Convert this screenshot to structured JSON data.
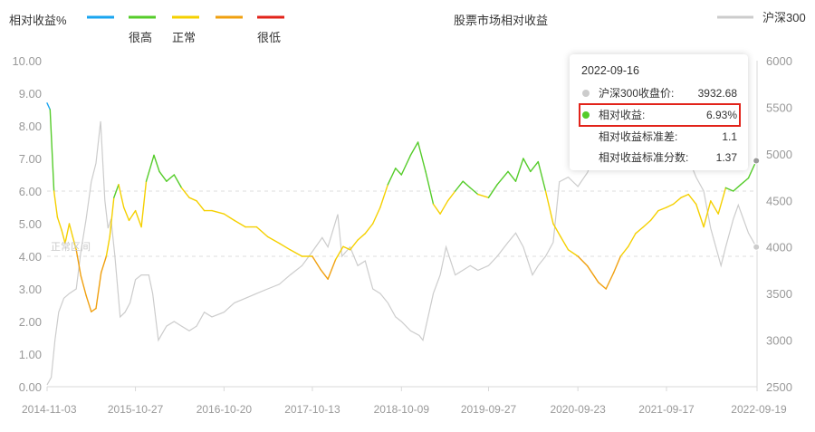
{
  "chart_data": {
    "type": "line",
    "title": "股票市场相对收益",
    "y_left_label": "相对收益%",
    "y_left_ticks": [
      "0.00",
      "1.00",
      "2.00",
      "3.00",
      "4.00",
      "5.00",
      "6.00",
      "7.00",
      "8.00",
      "9.00",
      "10.00"
    ],
    "y_left_range": [
      0,
      10
    ],
    "y_right_ticks": [
      "2500",
      "3000",
      "3500",
      "4000",
      "4500",
      "5000",
      "5500",
      "6000"
    ],
    "y_right_range": [
      2500,
      6000
    ],
    "x_ticks": [
      "2014-11-03",
      "2015-10-27",
      "2016-10-20",
      "2017-10-13",
      "2018-10-09",
      "2019-09-27",
      "2020-09-23",
      "2021-09-17",
      "2022-09-19"
    ],
    "band_label": "正常区间",
    "band": [
      4.0,
      6.0
    ],
    "legend_left": [
      {
        "label": "",
        "color": "#1aa5f0"
      },
      {
        "label": "很高",
        "color": "#55cc2a"
      },
      {
        "label": "正常",
        "color": "#f5d000"
      },
      {
        "label": "",
        "color": "#f0a010"
      },
      {
        "label": "很低",
        "color": "#e2231a"
      }
    ],
    "legend_right": {
      "label": "沪深300",
      "color": "#cccccc"
    },
    "grid": false,
    "series": [
      {
        "name": "相对收益",
        "axis": "left",
        "x": [
          "2014-11-03",
          "2014-11-15",
          "2014-12-01",
          "2014-12-15",
          "2015-01-01",
          "2015-01-15",
          "2015-02-01",
          "2015-02-15",
          "2015-03-01",
          "2015-03-20",
          "2015-04-10",
          "2015-05-01",
          "2015-05-20",
          "2015-06-10",
          "2015-07-01",
          "2015-07-15",
          "2015-08-01",
          "2015-08-20",
          "2015-09-10",
          "2015-10-01",
          "2015-10-27",
          "2015-11-20",
          "2015-12-10",
          "2016-01-10",
          "2016-02-01",
          "2016-03-01",
          "2016-04-01",
          "2016-05-01",
          "2016-06-01",
          "2016-07-01",
          "2016-08-01",
          "2016-09-01",
          "2016-10-20",
          "2016-12-01",
          "2017-01-15",
          "2017-03-01",
          "2017-04-15",
          "2017-06-01",
          "2017-07-15",
          "2017-09-01",
          "2017-10-13",
          "2017-11-15",
          "2017-12-15",
          "2018-01-15",
          "2018-02-15",
          "2018-03-15",
          "2018-04-15",
          "2018-05-15",
          "2018-06-15",
          "2018-07-15",
          "2018-08-15",
          "2018-09-15",
          "2018-10-09",
          "2018-11-15",
          "2018-12-15",
          "2019-01-15",
          "2019-02-15",
          "2019-03-15",
          "2019-04-15",
          "2019-05-15",
          "2019-06-15",
          "2019-07-15",
          "2019-08-15",
          "2019-09-27",
          "2019-11-01",
          "2019-12-15",
          "2020-01-15",
          "2020-02-15",
          "2020-03-15",
          "2020-04-15",
          "2020-05-15",
          "2020-06-15",
          "2020-07-15",
          "2020-08-15",
          "2020-09-23",
          "2020-11-01",
          "2020-12-15",
          "2021-01-15",
          "2021-02-15",
          "2021-03-15",
          "2021-04-15",
          "2021-05-15",
          "2021-06-15",
          "2021-07-15",
          "2021-08-15",
          "2021-09-17",
          "2021-10-15",
          "2021-11-15",
          "2021-12-15",
          "2022-01-15",
          "2022-02-15",
          "2022-03-15",
          "2022-04-15",
          "2022-05-15",
          "2022-06-15",
          "2022-07-15",
          "2022-08-15",
          "2022-09-16"
        ],
        "values": [
          8.7,
          8.5,
          6.0,
          5.2,
          4.8,
          4.4,
          5.0,
          4.6,
          4.2,
          3.4,
          2.8,
          2.3,
          2.4,
          3.5,
          4.0,
          4.6,
          5.8,
          6.2,
          5.5,
          5.1,
          5.4,
          4.9,
          6.3,
          7.1,
          6.6,
          6.3,
          6.5,
          6.1,
          5.8,
          5.7,
          5.4,
          5.4,
          5.3,
          5.1,
          4.9,
          4.9,
          4.6,
          4.4,
          4.2,
          4.0,
          4.0,
          3.6,
          3.3,
          3.9,
          4.3,
          4.2,
          4.5,
          4.7,
          5.0,
          5.5,
          6.2,
          6.7,
          6.5,
          7.1,
          7.5,
          6.6,
          5.6,
          5.3,
          5.7,
          6.0,
          6.3,
          6.1,
          5.9,
          5.8,
          6.2,
          6.6,
          6.3,
          7.0,
          6.6,
          6.9,
          6.0,
          5.0,
          4.6,
          4.2,
          4.0,
          3.7,
          3.2,
          3.0,
          3.5,
          4.0,
          4.3,
          4.7,
          4.9,
          5.1,
          5.4,
          5.5,
          5.6,
          5.8,
          5.9,
          5.6,
          4.9,
          5.7,
          5.3,
          6.1,
          6.0,
          6.2,
          6.4,
          6.93
        ]
      },
      {
        "name": "沪深300",
        "axis": "right",
        "x": [
          "2014-11-03",
          "2014-11-20",
          "2014-12-05",
          "2014-12-20",
          "2015-01-10",
          "2015-02-01",
          "2015-03-01",
          "2015-03-20",
          "2015-04-10",
          "2015-05-01",
          "2015-05-20",
          "2015-06-08",
          "2015-06-25",
          "2015-07-08",
          "2015-07-20",
          "2015-08-05",
          "2015-08-26",
          "2015-09-15",
          "2015-10-05",
          "2015-10-27",
          "2015-11-20",
          "2015-12-20",
          "2016-01-05",
          "2016-01-28",
          "2016-03-01",
          "2016-04-01",
          "2016-05-01",
          "2016-06-01",
          "2016-07-01",
          "2016-08-01",
          "2016-09-01",
          "2016-10-20",
          "2016-12-01",
          "2017-01-15",
          "2017-03-01",
          "2017-04-15",
          "2017-06-01",
          "2017-07-15",
          "2017-09-01",
          "2017-10-13",
          "2017-11-22",
          "2017-12-15",
          "2018-01-24",
          "2018-02-10",
          "2018-03-15",
          "2018-04-15",
          "2018-05-15",
          "2018-06-15",
          "2018-07-15",
          "2018-08-15",
          "2018-09-15",
          "2018-10-09",
          "2018-11-15",
          "2018-12-20",
          "2019-01-04",
          "2019-02-15",
          "2019-03-15",
          "2019-04-08",
          "2019-05-15",
          "2019-06-15",
          "2019-07-15",
          "2019-08-15",
          "2019-09-27",
          "2019-11-01",
          "2019-12-15",
          "2020-01-15",
          "2020-02-15",
          "2020-03-23",
          "2020-04-15",
          "2020-05-15",
          "2020-06-15",
          "2020-07-10",
          "2020-08-15",
          "2020-09-23",
          "2020-11-01",
          "2020-12-15",
          "2021-01-15",
          "2021-02-18",
          "2021-03-15",
          "2021-04-15",
          "2021-05-15",
          "2021-06-15",
          "2021-07-15",
          "2021-08-15",
          "2021-09-17",
          "2021-10-15",
          "2021-11-15",
          "2021-12-15",
          "2022-01-15",
          "2022-02-15",
          "2022-03-15",
          "2022-04-26",
          "2022-05-15",
          "2022-06-15",
          "2022-07-05",
          "2022-08-15",
          "2022-09-16"
        ],
        "values": [
          2520,
          2600,
          3000,
          3300,
          3450,
          3500,
          3550,
          3950,
          4300,
          4700,
          4900,
          5350,
          4500,
          4200,
          4300,
          3900,
          3250,
          3300,
          3400,
          3650,
          3700,
          3700,
          3500,
          3000,
          3150,
          3200,
          3150,
          3100,
          3150,
          3300,
          3250,
          3300,
          3400,
          3450,
          3500,
          3550,
          3600,
          3700,
          3800,
          3950,
          4100,
          4000,
          4350,
          3900,
          4000,
          3800,
          3850,
          3550,
          3500,
          3400,
          3250,
          3200,
          3100,
          3050,
          3000,
          3500,
          3700,
          4000,
          3700,
          3750,
          3800,
          3750,
          3800,
          3900,
          4050,
          4150,
          4000,
          3700,
          3800,
          3900,
          4050,
          4700,
          4750,
          4650,
          4800,
          5100,
          5450,
          5750,
          5200,
          5100,
          5200,
          5250,
          4900,
          4850,
          4900,
          4900,
          4900,
          4950,
          4750,
          4600,
          4200,
          3800,
          4000,
          4300,
          4450,
          4150,
          4000
        ]
      }
    ],
    "tooltip": {
      "date": "2022-09-16",
      "rows": [
        {
          "label": "沪深300收盘价:",
          "value": "3932.68",
          "dot": "#cccccc"
        },
        {
          "label": "相对收益:",
          "value": "6.93%",
          "dot": "#55cc2a"
        },
        {
          "label": "相对收益标准差:",
          "value": "1.1"
        },
        {
          "label": "相对收益标准分数:",
          "value": "1.37"
        }
      ]
    }
  }
}
